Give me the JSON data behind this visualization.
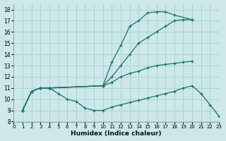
{
  "xlabel": "Humidex (Indice chaleur)",
  "xlim": [
    0,
    23
  ],
  "ylim": [
    8,
    18.5
  ],
  "xticks": [
    0,
    1,
    2,
    3,
    4,
    5,
    6,
    7,
    8,
    9,
    10,
    11,
    12,
    13,
    14,
    15,
    16,
    17,
    18,
    19,
    20,
    21,
    22,
    23
  ],
  "yticks": [
    8,
    9,
    10,
    11,
    12,
    13,
    14,
    15,
    16,
    17,
    18
  ],
  "background_color": "#cce8e8",
  "grid_color": "#aacfcf",
  "line_color": "#1a7070",
  "line1_x": [
    1,
    2,
    3,
    4,
    10,
    11,
    12,
    13,
    14,
    15,
    16,
    17,
    18,
    20
  ],
  "line1_y": [
    9,
    10.7,
    11,
    11,
    11.2,
    13.3,
    14.8,
    16.5,
    17.0,
    17.7,
    17.8,
    17.8,
    17.5,
    17.1
  ],
  "line2_x": [
    1,
    2,
    3,
    4,
    10,
    11,
    12,
    13,
    14,
    15,
    16,
    17,
    18,
    19,
    20
  ],
  "line2_y": [
    9,
    10.7,
    11,
    11,
    11.2,
    12.0,
    13.0,
    14.0,
    15.0,
    15.5,
    16.0,
    16.5,
    17.0,
    17.1,
    17.1
  ],
  "line3_x": [
    1,
    2,
    3,
    4,
    10,
    11,
    12,
    13,
    14,
    15,
    16,
    17,
    18,
    19,
    20
  ],
  "line3_y": [
    9,
    10.7,
    11,
    11,
    11.2,
    11.5,
    12.0,
    12.3,
    12.5,
    12.8,
    13.0,
    13.1,
    13.2,
    13.3,
    13.4
  ],
  "line4_x": [
    1,
    2,
    3,
    4,
    5,
    6,
    7,
    8,
    9,
    10,
    11,
    12,
    13,
    14,
    15,
    16,
    17,
    18,
    19,
    20,
    21,
    22,
    23
  ],
  "line4_y": [
    9,
    10.7,
    11,
    11,
    10.5,
    10.0,
    9.8,
    9.2,
    9.0,
    9.0,
    9.3,
    9.5,
    9.7,
    9.9,
    10.1,
    10.3,
    10.5,
    10.7,
    11.0,
    11.2,
    10.5,
    9.5,
    8.5
  ]
}
